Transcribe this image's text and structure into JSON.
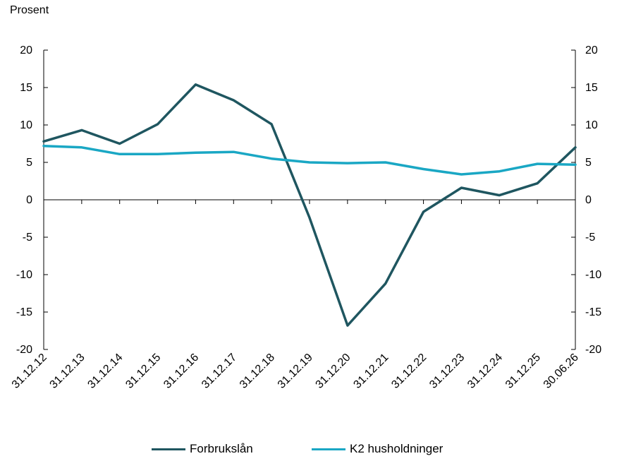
{
  "chart_data": {
    "type": "line",
    "ylabel": "Prosent",
    "x": [
      "31.12.12",
      "31.12.13",
      "31.12.14",
      "31.12.15",
      "31.12.16",
      "31.12.17",
      "31.12.18",
      "31.12.19",
      "31.12.20",
      "31.12.21",
      "31.12.22",
      "31.12.23",
      "31.12.24",
      "31.12.25",
      "30.06.26"
    ],
    "ylim": [
      -20,
      20
    ],
    "yticks": [
      20,
      15,
      10,
      5,
      0,
      -5,
      -10,
      -15,
      -20
    ],
    "dual_axis": true,
    "grid": false,
    "legend_position": "bottom",
    "series": [
      {
        "name": "Forbrukslån",
        "color": "#1f5660",
        "values": [
          7.8,
          9.3,
          7.5,
          10.1,
          15.4,
          13.3,
          10.1,
          -2.4,
          -16.8,
          -11.2,
          -1.6,
          1.6,
          0.6,
          2.2,
          7.0
        ]
      },
      {
        "name": "K2 husholdninger",
        "color": "#1aa7c4",
        "values": [
          7.2,
          7.0,
          6.1,
          6.1,
          6.3,
          6.4,
          5.5,
          5.0,
          4.9,
          5.0,
          4.1,
          3.4,
          3.8,
          4.8,
          4.7
        ]
      }
    ]
  }
}
